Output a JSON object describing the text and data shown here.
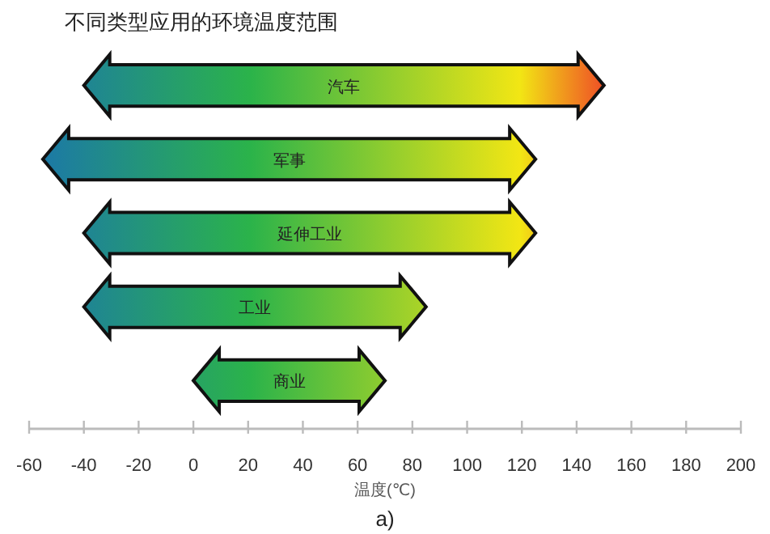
{
  "chart_data": {
    "type": "bar",
    "orientation": "horizontal",
    "title": "不同类型应用的环境温度范围",
    "categories": [
      "汽车",
      "军事",
      "延伸工业",
      "工业",
      "商业"
    ],
    "base": [
      -40,
      -55,
      -40,
      -40,
      0
    ],
    "values": [
      190,
      180,
      165,
      125,
      70
    ],
    "xlim": [
      -60,
      200
    ],
    "xticks": [
      -60,
      -40,
      -20,
      0,
      20,
      40,
      60,
      80,
      100,
      120,
      140,
      160,
      180,
      200
    ],
    "xlabel": "温度(℃)",
    "annotations": [
      "a)"
    ],
    "grid": false
  }
}
